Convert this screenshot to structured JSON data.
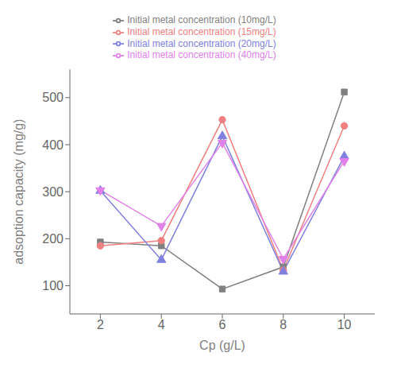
{
  "chart_data": {
    "type": "line",
    "x": [
      2,
      4,
      6,
      8,
      10
    ],
    "series": [
      {
        "name": "Initial metal concentration (10mg/L)",
        "values": [
          193,
          185,
          93,
          140,
          512
        ],
        "color": "#808080",
        "marker": "square"
      },
      {
        "name": "Initial metal concentration (15mg/L)",
        "values": [
          185,
          196,
          453,
          133,
          440
        ],
        "color": "#f08080",
        "marker": "circle"
      },
      {
        "name": "Initial metal concentration (20mg/L)",
        "values": [
          302,
          155,
          418,
          130,
          375
        ],
        "color": "#8080e0",
        "marker": "triangle-up"
      },
      {
        "name": "Initial metal concentration (40mg/L)",
        "values": [
          303,
          227,
          404,
          157,
          365
        ],
        "color": "#e080e8",
        "marker": "triangle-down"
      }
    ],
    "x_label": "Cp (g/L)",
    "y_label": "adsoption capacity (mg/g)",
    "xlim": [
      1.0,
      11.0
    ],
    "ylim": [
      40,
      560
    ],
    "xticks": [
      2,
      4,
      6,
      8,
      10
    ],
    "yticks": [
      100,
      200,
      300,
      400,
      500
    ],
    "grid": false,
    "legend": "top"
  }
}
